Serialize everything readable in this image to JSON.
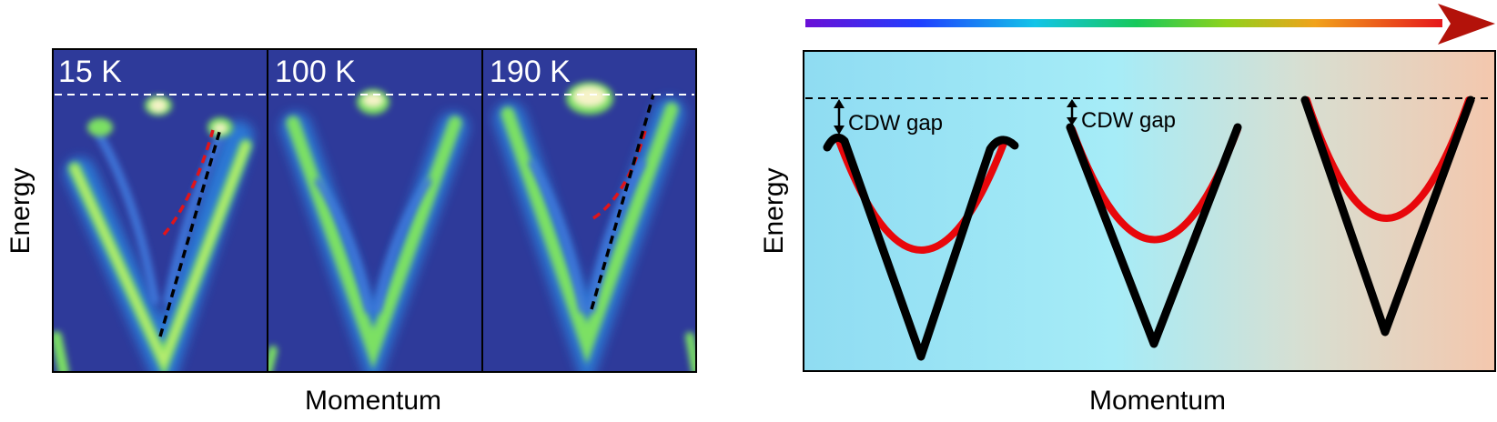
{
  "left_panel": {
    "temperatures": [
      "15 K",
      "100 K",
      "190 K"
    ],
    "y_label": "Energy",
    "x_label": "Momentum"
  },
  "right_panel": {
    "gap_labels": [
      "CDW gap",
      "CDW gap"
    ],
    "y_label": "Energy",
    "x_label": "Momentum"
  },
  "colors": {
    "arpes_background": "#2e3a9a",
    "arpes_band": "#7be063",
    "arpes_peak": "#f6f3c8",
    "red_dash": "#e0141a",
    "black_band": "#000000",
    "red_band": "#e8070b",
    "arrow_head": "#b3120a",
    "cold_bg": "#8fdcf2",
    "hot_bg": "#f4c7ad"
  }
}
